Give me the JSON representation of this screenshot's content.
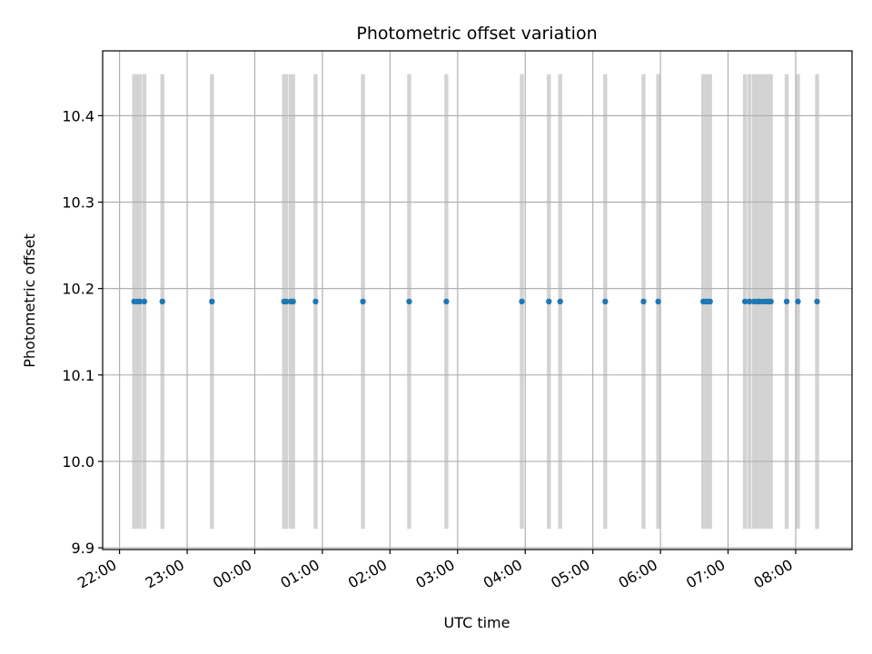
{
  "chart_data": {
    "type": "scatter",
    "title": "Photometric offset variation",
    "xlabel": "UTC time",
    "ylabel": "Photometric offset",
    "grid": true,
    "xlim": [
      "21:45",
      "08:50"
    ],
    "ylim": [
      9.898,
      10.475
    ],
    "x_tick_labels": [
      "22:00",
      "23:00",
      "00:00",
      "01:00",
      "02:00",
      "03:00",
      "04:00",
      "05:00",
      "06:00",
      "07:00",
      "08:00"
    ],
    "y_tick_labels": [
      "9.9",
      "10.0",
      "10.1",
      "10.2",
      "10.3",
      "10.4"
    ],
    "y_ticks": [
      9.9,
      10.0,
      10.1,
      10.2,
      10.3,
      10.4
    ],
    "span_ylim": [
      9.922,
      10.448
    ],
    "colors": {
      "points": "#1f77b4",
      "spans": "#d3d3d3",
      "grid": "#b0b0b0"
    },
    "x": [
      "22:13",
      "22:16",
      "22:18",
      "22:22",
      "22:38",
      "23:22",
      "00:26",
      "00:28",
      "00:32",
      "00:34",
      "00:54",
      "01:36",
      "02:17",
      "02:50",
      "03:57",
      "04:21",
      "04:31",
      "05:11",
      "05:45",
      "05:58",
      "06:38",
      "06:40",
      "06:42",
      "06:44",
      "07:15",
      "07:19",
      "07:23",
      "07:26",
      "07:28",
      "07:31",
      "07:34",
      "07:36",
      "07:38",
      "07:52",
      "08:02",
      "08:19"
    ],
    "y": [
      10.185,
      10.185,
      10.185,
      10.185,
      10.185,
      10.185,
      10.185,
      10.185,
      10.185,
      10.185,
      10.185,
      10.185,
      10.185,
      10.185,
      10.185,
      10.185,
      10.185,
      10.185,
      10.185,
      10.185,
      10.185,
      10.185,
      10.185,
      10.185,
      10.185,
      10.185,
      10.185,
      10.185,
      10.185,
      10.185,
      10.185,
      10.185,
      10.185,
      10.185,
      10.185,
      10.185
    ]
  }
}
